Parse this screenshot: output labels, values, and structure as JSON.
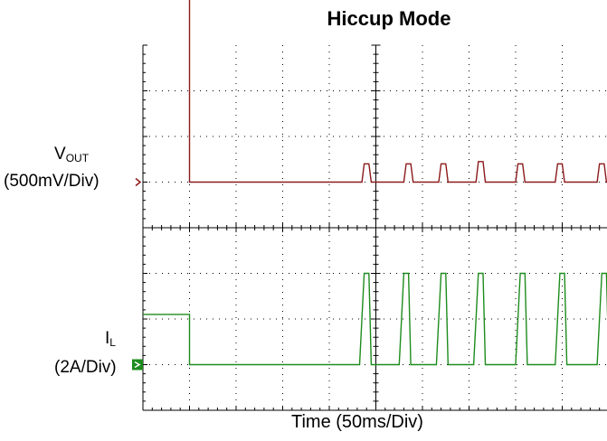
{
  "chart_data": {
    "type": "line",
    "title": "Hiccup Mode",
    "xlabel": "Time (50ms/Div)",
    "x_divisions": 10,
    "y_divisions": 8,
    "grid": "dotted",
    "channels": [
      {
        "name": "VOUT",
        "name_main": "V",
        "name_sub": "OUT",
        "scale": "(500mV/Div)",
        "color": "#8b1a1a",
        "marker": "arrow",
        "unit_per_div": 0.5,
        "ground_div": 5,
        "x_div": [
          0,
          1.0,
          1.0,
          4.7,
          4.75,
          4.85,
          4.9,
          5.6,
          5.65,
          5.75,
          5.8,
          6.35,
          6.4,
          6.5,
          6.55,
          7.15,
          7.2,
          7.3,
          7.35,
          8.0,
          8.05,
          8.15,
          8.2,
          8.85,
          8.9,
          9.0,
          9.05,
          9.75,
          9.8,
          9.9,
          9.95,
          10
        ],
        "y_div": [
          7.5,
          7.5,
          0,
          0,
          0.4,
          0.4,
          0,
          0,
          0.4,
          0.4,
          0,
          0,
          0.4,
          0.4,
          0,
          0,
          0.45,
          0.45,
          0,
          0,
          0.4,
          0.4,
          0,
          0,
          0.4,
          0.4,
          0,
          0,
          0.4,
          0.4,
          0,
          0
        ]
      },
      {
        "name": "IL",
        "name_main": "I",
        "name_sub": "L",
        "scale": "(2A/Div)",
        "color": "#1e8c1e",
        "marker": "box",
        "unit_per_div": 2,
        "ground_div": 1,
        "x_div": [
          0,
          1.0,
          1.0,
          4.65,
          4.75,
          4.85,
          4.9,
          5.5,
          5.6,
          5.7,
          5.75,
          6.3,
          6.4,
          6.5,
          6.55,
          7.1,
          7.2,
          7.3,
          7.35,
          8.0,
          8.1,
          8.2,
          8.25,
          8.85,
          8.95,
          9.05,
          9.1,
          9.75,
          9.85,
          9.95,
          10
        ],
        "y_div": [
          1.1,
          1.1,
          0,
          0,
          2.0,
          2.0,
          0,
          0,
          2.0,
          2.0,
          0,
          0,
          2.0,
          2.0,
          0,
          0,
          2.0,
          2.0,
          0,
          0,
          2.0,
          2.0,
          0,
          0,
          2.0,
          2.0,
          0,
          0,
          2.0,
          2.0,
          0
        ]
      }
    ]
  }
}
